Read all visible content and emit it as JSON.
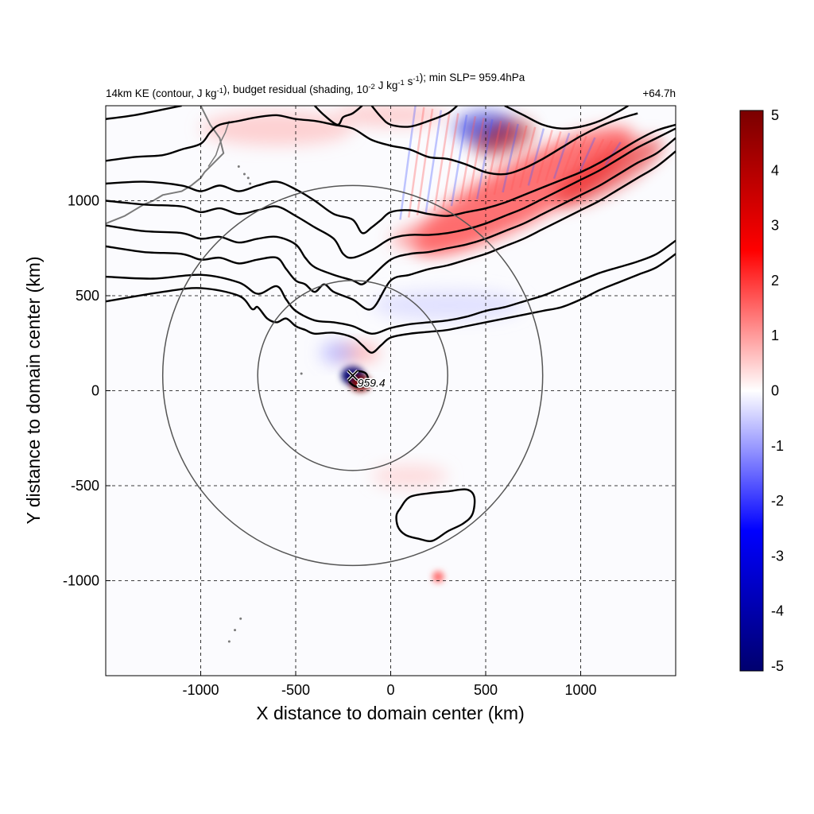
{
  "chart_data": {
    "type": "heatmap",
    "title": "14km KE (contour, J kg-1), budget residual (shading, 10-2 J kg-1 s-1); min SLP= 959.4hPa",
    "title_parts": {
      "a": "14km KE (contour, J kg",
      "a_sup": "-1",
      "b": "), budget residual (shading, 10",
      "b_sup": "-2",
      "c": " J kg",
      "c_sup": "-1",
      "d": " s",
      "d_sup": "-1",
      "e": "); min SLP= 959.4hPa"
    },
    "time_label": "+64.7h",
    "xlabel": "X distance to domain center (km)",
    "ylabel": "Y distance to domain center (km)",
    "xlim": [
      -1500,
      1500
    ],
    "ylim": [
      -1500,
      1500
    ],
    "x_ticks": [
      -1000,
      -500,
      0,
      500,
      1000
    ],
    "y_ticks": [
      -1000,
      -500,
      0,
      500,
      1000
    ],
    "x_tick_labels": [
      "-1000",
      "-500",
      "0",
      "500",
      "1000"
    ],
    "y_tick_labels": [
      "-1000",
      "-500",
      "0",
      "500",
      "1000"
    ],
    "grid": true,
    "colorbar": {
      "min": -5,
      "max": 5,
      "ticks": [
        5,
        4,
        3,
        2,
        1,
        0,
        -1,
        -2,
        -3,
        -4,
        -5
      ],
      "tick_labels": [
        "5",
        "4",
        "3",
        "2",
        "1",
        "0",
        "-1",
        "-2",
        "-3",
        "-4",
        "-5"
      ],
      "colors": [
        "#00006e",
        "#0000ff",
        "#ffffff",
        "#ff0000",
        "#7a0000"
      ],
      "placement": "right"
    },
    "storm_center": {
      "x": -200,
      "y": 80,
      "label": "959.4"
    },
    "range_rings": [
      {
        "center_x": -200,
        "center_y": 80,
        "radius_km": 500
      },
      {
        "center_x": -200,
        "center_y": 80,
        "radius_km": 1000
      }
    ],
    "ke_contours": [
      {
        "points": [
          [
            -1500,
            -1500
          ]
        ]
      }
    ],
    "ke_contour_lines": [
      [
        [
          -1500,
          600
        ],
        [
          -1250,
          590
        ],
        [
          -1000,
          610
        ],
        [
          -800,
          570
        ],
        [
          -700,
          510
        ],
        [
          -600,
          550
        ],
        [
          -550,
          480
        ],
        [
          -500,
          420
        ],
        [
          -400,
          370
        ],
        [
          -300,
          360
        ],
        [
          -200,
          340
        ],
        [
          -100,
          300
        ],
        [
          0,
          330
        ],
        [
          100,
          350
        ],
        [
          200,
          360
        ],
        [
          300,
          370
        ],
        [
          400,
          390
        ],
        [
          500,
          420
        ],
        [
          600,
          440
        ],
        [
          700,
          470
        ],
        [
          800,
          500
        ],
        [
          900,
          540
        ],
        [
          1000,
          580
        ],
        [
          1100,
          620
        ],
        [
          1200,
          650
        ],
        [
          1300,
          680
        ],
        [
          1400,
          720
        ],
        [
          1500,
          790
        ]
      ],
      [
        [
          -1500,
          470
        ],
        [
          -1200,
          520
        ],
        [
          -1000,
          540
        ],
        [
          -800,
          500
        ],
        [
          -730,
          430
        ],
        [
          -700,
          440
        ],
        [
          -650,
          380
        ],
        [
          -600,
          360
        ],
        [
          -550,
          380
        ],
        [
          -500,
          340
        ],
        [
          -450,
          320
        ],
        [
          -400,
          300
        ],
        [
          -300,
          305
        ],
        [
          -200,
          280
        ],
        [
          -150,
          240
        ],
        [
          -100,
          200
        ],
        [
          -50,
          240
        ],
        [
          0,
          280
        ],
        [
          100,
          300
        ],
        [
          200,
          310
        ],
        [
          300,
          320
        ],
        [
          400,
          340
        ],
        [
          500,
          360
        ],
        [
          600,
          380
        ],
        [
          700,
          400
        ],
        [
          800,
          420
        ],
        [
          900,
          440
        ],
        [
          1000,
          480
        ],
        [
          1100,
          530
        ],
        [
          1200,
          570
        ],
        [
          1300,
          610
        ],
        [
          1400,
          650
        ],
        [
          1500,
          720
        ]
      ],
      [
        [
          -1500,
          1090
        ],
        [
          -1300,
          1100
        ],
        [
          -1100,
          1080
        ],
        [
          -1000,
          1050
        ],
        [
          -900,
          1080
        ],
        [
          -800,
          1050
        ],
        [
          -700,
          1080
        ],
        [
          -600,
          1100
        ],
        [
          -500,
          1060
        ],
        [
          -400,
          1000
        ],
        [
          -300,
          930
        ],
        [
          -200,
          900
        ],
        [
          -150,
          830
        ],
        [
          -100,
          860
        ],
        [
          -50,
          900
        ],
        [
          0,
          940
        ],
        [
          100,
          950
        ],
        [
          200,
          930
        ],
        [
          300,
          920
        ],
        [
          400,
          940
        ],
        [
          500,
          960
        ],
        [
          600,
          990
        ],
        [
          700,
          1030
        ],
        [
          800,
          1070
        ],
        [
          900,
          1110
        ],
        [
          1000,
          1150
        ],
        [
          1100,
          1200
        ],
        [
          1200,
          1260
        ],
        [
          1300,
          1320
        ],
        [
          1400,
          1370
        ],
        [
          1500,
          1400
        ]
      ],
      [
        [
          -1500,
          1000
        ],
        [
          -1300,
          980
        ],
        [
          -1100,
          970
        ],
        [
          -1000,
          940
        ],
        [
          -900,
          960
        ],
        [
          -800,
          930
        ],
        [
          -700,
          950
        ],
        [
          -600,
          970
        ],
        [
          -500,
          920
        ],
        [
          -400,
          860
        ],
        [
          -300,
          800
        ],
        [
          -250,
          720
        ],
        [
          -200,
          700
        ],
        [
          -100,
          740
        ],
        [
          0,
          800
        ],
        [
          100,
          820
        ],
        [
          200,
          820
        ],
        [
          300,
          830
        ],
        [
          400,
          850
        ],
        [
          500,
          880
        ],
        [
          600,
          920
        ],
        [
          700,
          960
        ],
        [
          800,
          1010
        ],
        [
          900,
          1060
        ],
        [
          1000,
          1110
        ],
        [
          1100,
          1160
        ],
        [
          1200,
          1220
        ],
        [
          1300,
          1280
        ],
        [
          1400,
          1330
        ],
        [
          1500,
          1380
        ]
      ],
      [
        [
          -1500,
          870
        ],
        [
          -1300,
          840
        ],
        [
          -1100,
          830
        ],
        [
          -1000,
          800
        ],
        [
          -900,
          810
        ],
        [
          -800,
          780
        ],
        [
          -700,
          800
        ],
        [
          -600,
          810
        ],
        [
          -500,
          770
        ],
        [
          -450,
          700
        ],
        [
          -400,
          650
        ],
        [
          -300,
          610
        ],
        [
          -200,
          580
        ],
        [
          -150,
          560
        ],
        [
          -100,
          600
        ],
        [
          0,
          690
        ],
        [
          100,
          720
        ],
        [
          200,
          730
        ],
        [
          300,
          750
        ],
        [
          400,
          770
        ],
        [
          500,
          800
        ],
        [
          600,
          840
        ],
        [
          700,
          880
        ],
        [
          800,
          930
        ],
        [
          900,
          980
        ],
        [
          1000,
          1030
        ],
        [
          1100,
          1080
        ],
        [
          1200,
          1140
        ],
        [
          1300,
          1200
        ],
        [
          1400,
          1250
        ],
        [
          1500,
          1330
        ]
      ],
      [
        [
          -1500,
          760
        ],
        [
          -1300,
          730
        ],
        [
          -1100,
          720
        ],
        [
          -1000,
          690
        ],
        [
          -900,
          700
        ],
        [
          -800,
          670
        ],
        [
          -700,
          690
        ],
        [
          -600,
          700
        ],
        [
          -550,
          640
        ],
        [
          -500,
          580
        ],
        [
          -450,
          560
        ],
        [
          -400,
          520
        ],
        [
          -350,
          560
        ],
        [
          -300,
          520
        ],
        [
          -200,
          480
        ],
        [
          -100,
          430
        ],
        [
          0,
          580
        ],
        [
          100,
          610
        ],
        [
          200,
          640
        ],
        [
          300,
          660
        ],
        [
          400,
          690
        ],
        [
          500,
          720
        ],
        [
          600,
          760
        ],
        [
          700,
          800
        ],
        [
          800,
          850
        ],
        [
          900,
          900
        ],
        [
          1000,
          950
        ],
        [
          1100,
          1000
        ],
        [
          1200,
          1060
        ],
        [
          1300,
          1120
        ],
        [
          1400,
          1180
        ],
        [
          1500,
          1260
        ]
      ],
      [
        [
          -1500,
          1210
        ],
        [
          -1350,
          1230
        ],
        [
          -1200,
          1240
        ],
        [
          -1100,
          1270
        ],
        [
          -1000,
          1300
        ],
        [
          -950,
          1360
        ],
        [
          -900,
          1400
        ],
        [
          -800,
          1420
        ],
        [
          -700,
          1440
        ],
        [
          -600,
          1450
        ],
        [
          -500,
          1430
        ],
        [
          -400,
          1420
        ],
        [
          -300,
          1400
        ],
        [
          -200,
          1380
        ],
        [
          -100,
          1320
        ],
        [
          0,
          1290
        ],
        [
          100,
          1270
        ],
        [
          200,
          1230
        ],
        [
          300,
          1220
        ],
        [
          400,
          1190
        ],
        [
          500,
          1150
        ],
        [
          600,
          1140
        ],
        [
          700,
          1170
        ],
        [
          800,
          1220
        ],
        [
          900,
          1280
        ],
        [
          1000,
          1340
        ],
        [
          1100,
          1390
        ],
        [
          1200,
          1430
        ],
        [
          1300,
          1460
        ]
      ],
      [
        [
          -1500,
          1430
        ],
        [
          -1350,
          1450
        ],
        [
          -1200,
          1480
        ],
        [
          -1100,
          1500
        ]
      ],
      [
        [
          -400,
          1500
        ],
        [
          -350,
          1450
        ],
        [
          -280,
          1400
        ],
        [
          -250,
          1440
        ],
        [
          -200,
          1460
        ],
        [
          -150,
          1500
        ]
      ],
      [
        [
          -100,
          1500
        ],
        [
          -50,
          1440
        ],
        [
          0,
          1400
        ],
        [
          100,
          1390
        ],
        [
          200,
          1420
        ],
        [
          300,
          1460
        ],
        [
          350,
          1500
        ]
      ],
      [
        [
          600,
          1500
        ],
        [
          700,
          1450
        ],
        [
          800,
          1400
        ],
        [
          900,
          1380
        ],
        [
          1000,
          1390
        ],
        [
          1100,
          1420
        ],
        [
          1200,
          1470
        ],
        [
          1250,
          1500
        ]
      ]
    ],
    "ke_closed_contours": [
      [
        [
          50,
          -620
        ],
        [
          100,
          -560
        ],
        [
          200,
          -540
        ],
        [
          300,
          -530
        ],
        [
          400,
          -520
        ],
        [
          440,
          -560
        ],
        [
          430,
          -650
        ],
        [
          380,
          -700
        ],
        [
          300,
          -740
        ],
        [
          220,
          -790
        ],
        [
          150,
          -780
        ],
        [
          80,
          -760
        ],
        [
          40,
          -720
        ],
        [
          30,
          -660
        ]
      ],
      [
        [
          -220,
          60
        ],
        [
          -180,
          100
        ],
        [
          -130,
          90
        ],
        [
          -120,
          40
        ],
        [
          -160,
          20
        ],
        [
          -200,
          30
        ]
      ]
    ],
    "shading_blobs": [
      {
        "x": 700,
        "y": 1050,
        "rx": 650,
        "ry": 160,
        "rot": -28,
        "value": 2.5
      },
      {
        "x": 1150,
        "y": 1150,
        "rx": 320,
        "ry": 90,
        "rot": -30,
        "value": 3.0
      },
      {
        "x": 500,
        "y": 1380,
        "rx": 160,
        "ry": 90,
        "rot": 0,
        "value": -3.5
      },
      {
        "x": 600,
        "y": 1330,
        "rx": 160,
        "ry": 80,
        "rot": -20,
        "value": 4.0
      },
      {
        "x": 250,
        "y": 830,
        "rx": 250,
        "ry": 70,
        "rot": -10,
        "value": 1.5
      },
      {
        "x": -200,
        "y": 80,
        "rx": 60,
        "ry": 50,
        "rot": 0,
        "value": -5
      },
      {
        "x": -160,
        "y": 40,
        "rx": 55,
        "ry": 45,
        "rot": 0,
        "value": 5
      },
      {
        "x": -170,
        "y": 200,
        "rx": 110,
        "ry": 50,
        "rot": 0,
        "value": 1.2
      },
      {
        "x": -280,
        "y": 200,
        "rx": 90,
        "ry": 60,
        "rot": 0,
        "value": -1.0
      },
      {
        "x": -600,
        "y": 1380,
        "rx": 400,
        "ry": 90,
        "rot": 0,
        "value": 0.8
      },
      {
        "x": 0,
        "y": 1450,
        "rx": 300,
        "ry": 60,
        "rot": 0,
        "value": 0.8
      },
      {
        "x": 100,
        "y": -450,
        "rx": 200,
        "ry": 60,
        "rot": 0,
        "value": 0.6
      },
      {
        "x": 250,
        "y": -980,
        "rx": 30,
        "ry": 30,
        "rot": 0,
        "value": 1.5
      },
      {
        "x": 300,
        "y": 450,
        "rx": 400,
        "ry": 80,
        "rot": 0,
        "value": -0.5
      }
    ]
  }
}
